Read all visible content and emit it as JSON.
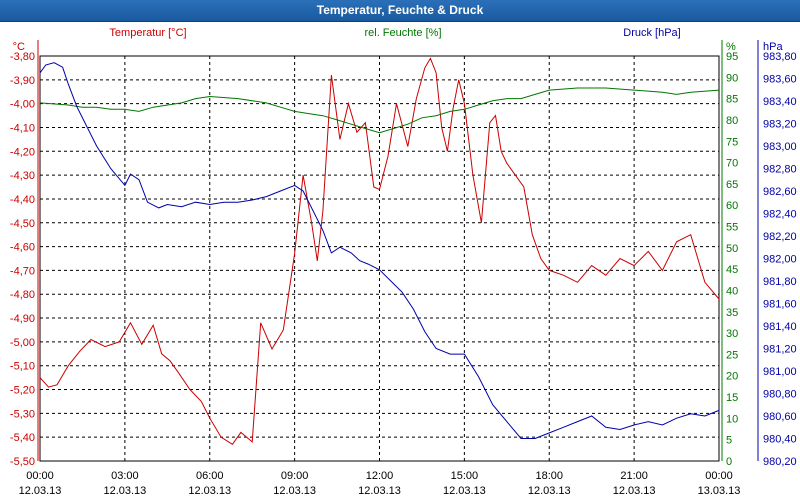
{
  "window": {
    "title": "Temperatur, Feuchte & Druck"
  },
  "colors": {
    "temperature": "#cc0000",
    "humidity": "#007700",
    "pressure": "#0000aa",
    "grid": "#000000"
  },
  "chart_data": {
    "type": "line",
    "title": "Temperatur, Feuchte & Druck",
    "grid": true,
    "x_ticks": [
      {
        "time": "00:00",
        "date": "12.03.13"
      },
      {
        "time": "03:00",
        "date": "12.03.13"
      },
      {
        "time": "06:00",
        "date": "12.03.13"
      },
      {
        "time": "09:00",
        "date": "12.03.13"
      },
      {
        "time": "12:00",
        "date": "12.03.13"
      },
      {
        "time": "15:00",
        "date": "12.03.13"
      },
      {
        "time": "18:00",
        "date": "12.03.13"
      },
      {
        "time": "21:00",
        "date": "12.03.13"
      },
      {
        "time": "00:00",
        "date": "13.03.13"
      }
    ],
    "x_range_hours": [
      0,
      24
    ],
    "axes": {
      "temperature": {
        "label": "Temperatur [°C]",
        "unit": "°C",
        "range": [
          -5.5,
          -3.8
        ],
        "ticks": [
          "-3,80",
          "-3,90",
          "-4,00",
          "-4,10",
          "-4,20",
          "-4,30",
          "-4,40",
          "-4,50",
          "-4,60",
          "-4,70",
          "-4,80",
          "-4,90",
          "-5,00",
          "-5,10",
          "-5,20",
          "-5,30",
          "-5,40",
          "-5,50"
        ]
      },
      "humidity": {
        "label": "rel. Feuchte [%]",
        "unit": "%",
        "range": [
          0,
          95
        ],
        "ticks": [
          "95",
          "90",
          "85",
          "80",
          "75",
          "70",
          "65",
          "60",
          "55",
          "50",
          "45",
          "40",
          "35",
          "30",
          "25",
          "20",
          "15",
          "10",
          "5",
          "0"
        ]
      },
      "pressure": {
        "label": "Druck [hPa]",
        "unit": "hPa",
        "range": [
          980.2,
          983.8
        ],
        "ticks": [
          "983,80",
          "983,60",
          "983,40",
          "983,20",
          "983,00",
          "982,80",
          "982,60",
          "982,40",
          "982,20",
          "982,00",
          "981,80",
          "981,60",
          "981,40",
          "981,20",
          "981,00",
          "980,80",
          "980,60",
          "980,40",
          "980,20"
        ]
      }
    },
    "series": [
      {
        "name": "Temperatur [°C]",
        "axis": "temperature",
        "color": "#cc0000",
        "x": [
          0,
          0.3,
          0.6,
          1,
          1.4,
          1.8,
          2.3,
          2.8,
          3.2,
          3.6,
          4,
          4.3,
          4.6,
          4.9,
          5.3,
          5.7,
          6,
          6.4,
          6.8,
          7.1,
          7.5,
          7.8,
          8.2,
          8.6,
          9,
          9.3,
          9.6,
          9.8,
          10,
          10.3,
          10.6,
          10.9,
          11.2,
          11.5,
          11.8,
          12,
          12.3,
          12.6,
          13,
          13.3,
          13.6,
          13.8,
          14,
          14.2,
          14.4,
          14.6,
          14.8,
          15,
          15.3,
          15.6,
          15.9,
          16.1,
          16.3,
          16.5,
          16.8,
          17.1,
          17.4,
          17.7,
          18,
          18.5,
          19,
          19.5,
          20,
          20.5,
          21,
          21.5,
          22,
          22.5,
          23,
          23.5,
          24
        ],
        "values": [
          -5.15,
          -5.19,
          -5.18,
          -5.1,
          -5.04,
          -4.99,
          -5.02,
          -5.0,
          -4.92,
          -5.01,
          -4.93,
          -5.05,
          -5.08,
          -5.13,
          -5.2,
          -5.25,
          -5.32,
          -5.4,
          -5.43,
          -5.38,
          -5.42,
          -4.92,
          -5.03,
          -4.95,
          -4.63,
          -4.3,
          -4.5,
          -4.66,
          -4.45,
          -3.88,
          -4.15,
          -4.0,
          -4.12,
          -4.08,
          -4.35,
          -4.36,
          -4.22,
          -4.0,
          -4.18,
          -3.98,
          -3.85,
          -3.81,
          -3.87,
          -4.1,
          -4.2,
          -4.02,
          -3.9,
          -4.0,
          -4.3,
          -4.5,
          -4.08,
          -4.05,
          -4.2,
          -4.25,
          -4.3,
          -4.35,
          -4.55,
          -4.65,
          -4.7,
          -4.72,
          -4.75,
          -4.68,
          -4.72,
          -4.65,
          -4.68,
          -4.62,
          -4.7,
          -4.58,
          -4.55,
          -4.75,
          -4.82
        ]
      },
      {
        "name": "rel. Feuchte [%]",
        "axis": "humidity",
        "color": "#007700",
        "x": [
          0,
          1,
          1.5,
          2,
          2.5,
          3,
          3.5,
          4,
          5,
          5.5,
          6,
          7,
          8,
          8.5,
          9,
          9.5,
          10,
          10.5,
          11,
          11.5,
          12,
          12.5,
          13,
          13.5,
          14,
          14.5,
          15,
          15.5,
          16,
          16.5,
          17,
          17.5,
          18,
          19,
          20,
          21,
          22,
          22.5,
          23,
          24
        ],
        "values": [
          84,
          83.5,
          83,
          83,
          82.5,
          82.5,
          82,
          83,
          84,
          85,
          85.5,
          85,
          84,
          83,
          82,
          81.5,
          81,
          80,
          79,
          78,
          77,
          78,
          79,
          80.5,
          81,
          82,
          82.5,
          83.5,
          84.5,
          85,
          85,
          86,
          87,
          87.5,
          87.5,
          87,
          86.5,
          86,
          86.5,
          87
        ]
      },
      {
        "name": "Druck [hPa]",
        "axis": "pressure",
        "color": "#0000aa",
        "x": [
          0,
          0.2,
          0.5,
          0.8,
          1,
          1.3,
          1.6,
          2,
          2.5,
          3,
          3.2,
          3.5,
          3.8,
          4.2,
          4.5,
          5,
          5.5,
          6,
          6.5,
          7,
          7.5,
          8,
          8.5,
          9,
          9.3,
          9.6,
          10,
          10.3,
          10.6,
          11,
          11.3,
          11.6,
          12,
          12.4,
          12.8,
          13.2,
          13.6,
          14,
          14.5,
          15,
          15.5,
          16,
          16.5,
          17,
          17.5,
          18,
          18.5,
          19,
          19.5,
          20,
          20.5,
          21,
          21.5,
          22,
          22.5,
          23,
          23.5,
          24
        ],
        "values": [
          983.65,
          983.72,
          983.74,
          983.7,
          983.55,
          983.35,
          983.2,
          983.0,
          982.8,
          982.65,
          982.75,
          982.7,
          982.5,
          982.45,
          982.48,
          982.46,
          982.5,
          982.48,
          982.5,
          982.5,
          982.52,
          982.55,
          982.6,
          982.65,
          982.6,
          982.45,
          982.25,
          982.05,
          982.1,
          982.05,
          981.98,
          981.95,
          981.9,
          981.8,
          981.7,
          981.55,
          981.35,
          981.2,
          981.15,
          981.15,
          980.95,
          980.7,
          980.55,
          980.4,
          980.4,
          980.45,
          980.5,
          980.55,
          980.6,
          980.5,
          980.48,
          980.52,
          980.55,
          980.52,
          980.58,
          980.62,
          980.6,
          980.65
        ]
      }
    ]
  }
}
